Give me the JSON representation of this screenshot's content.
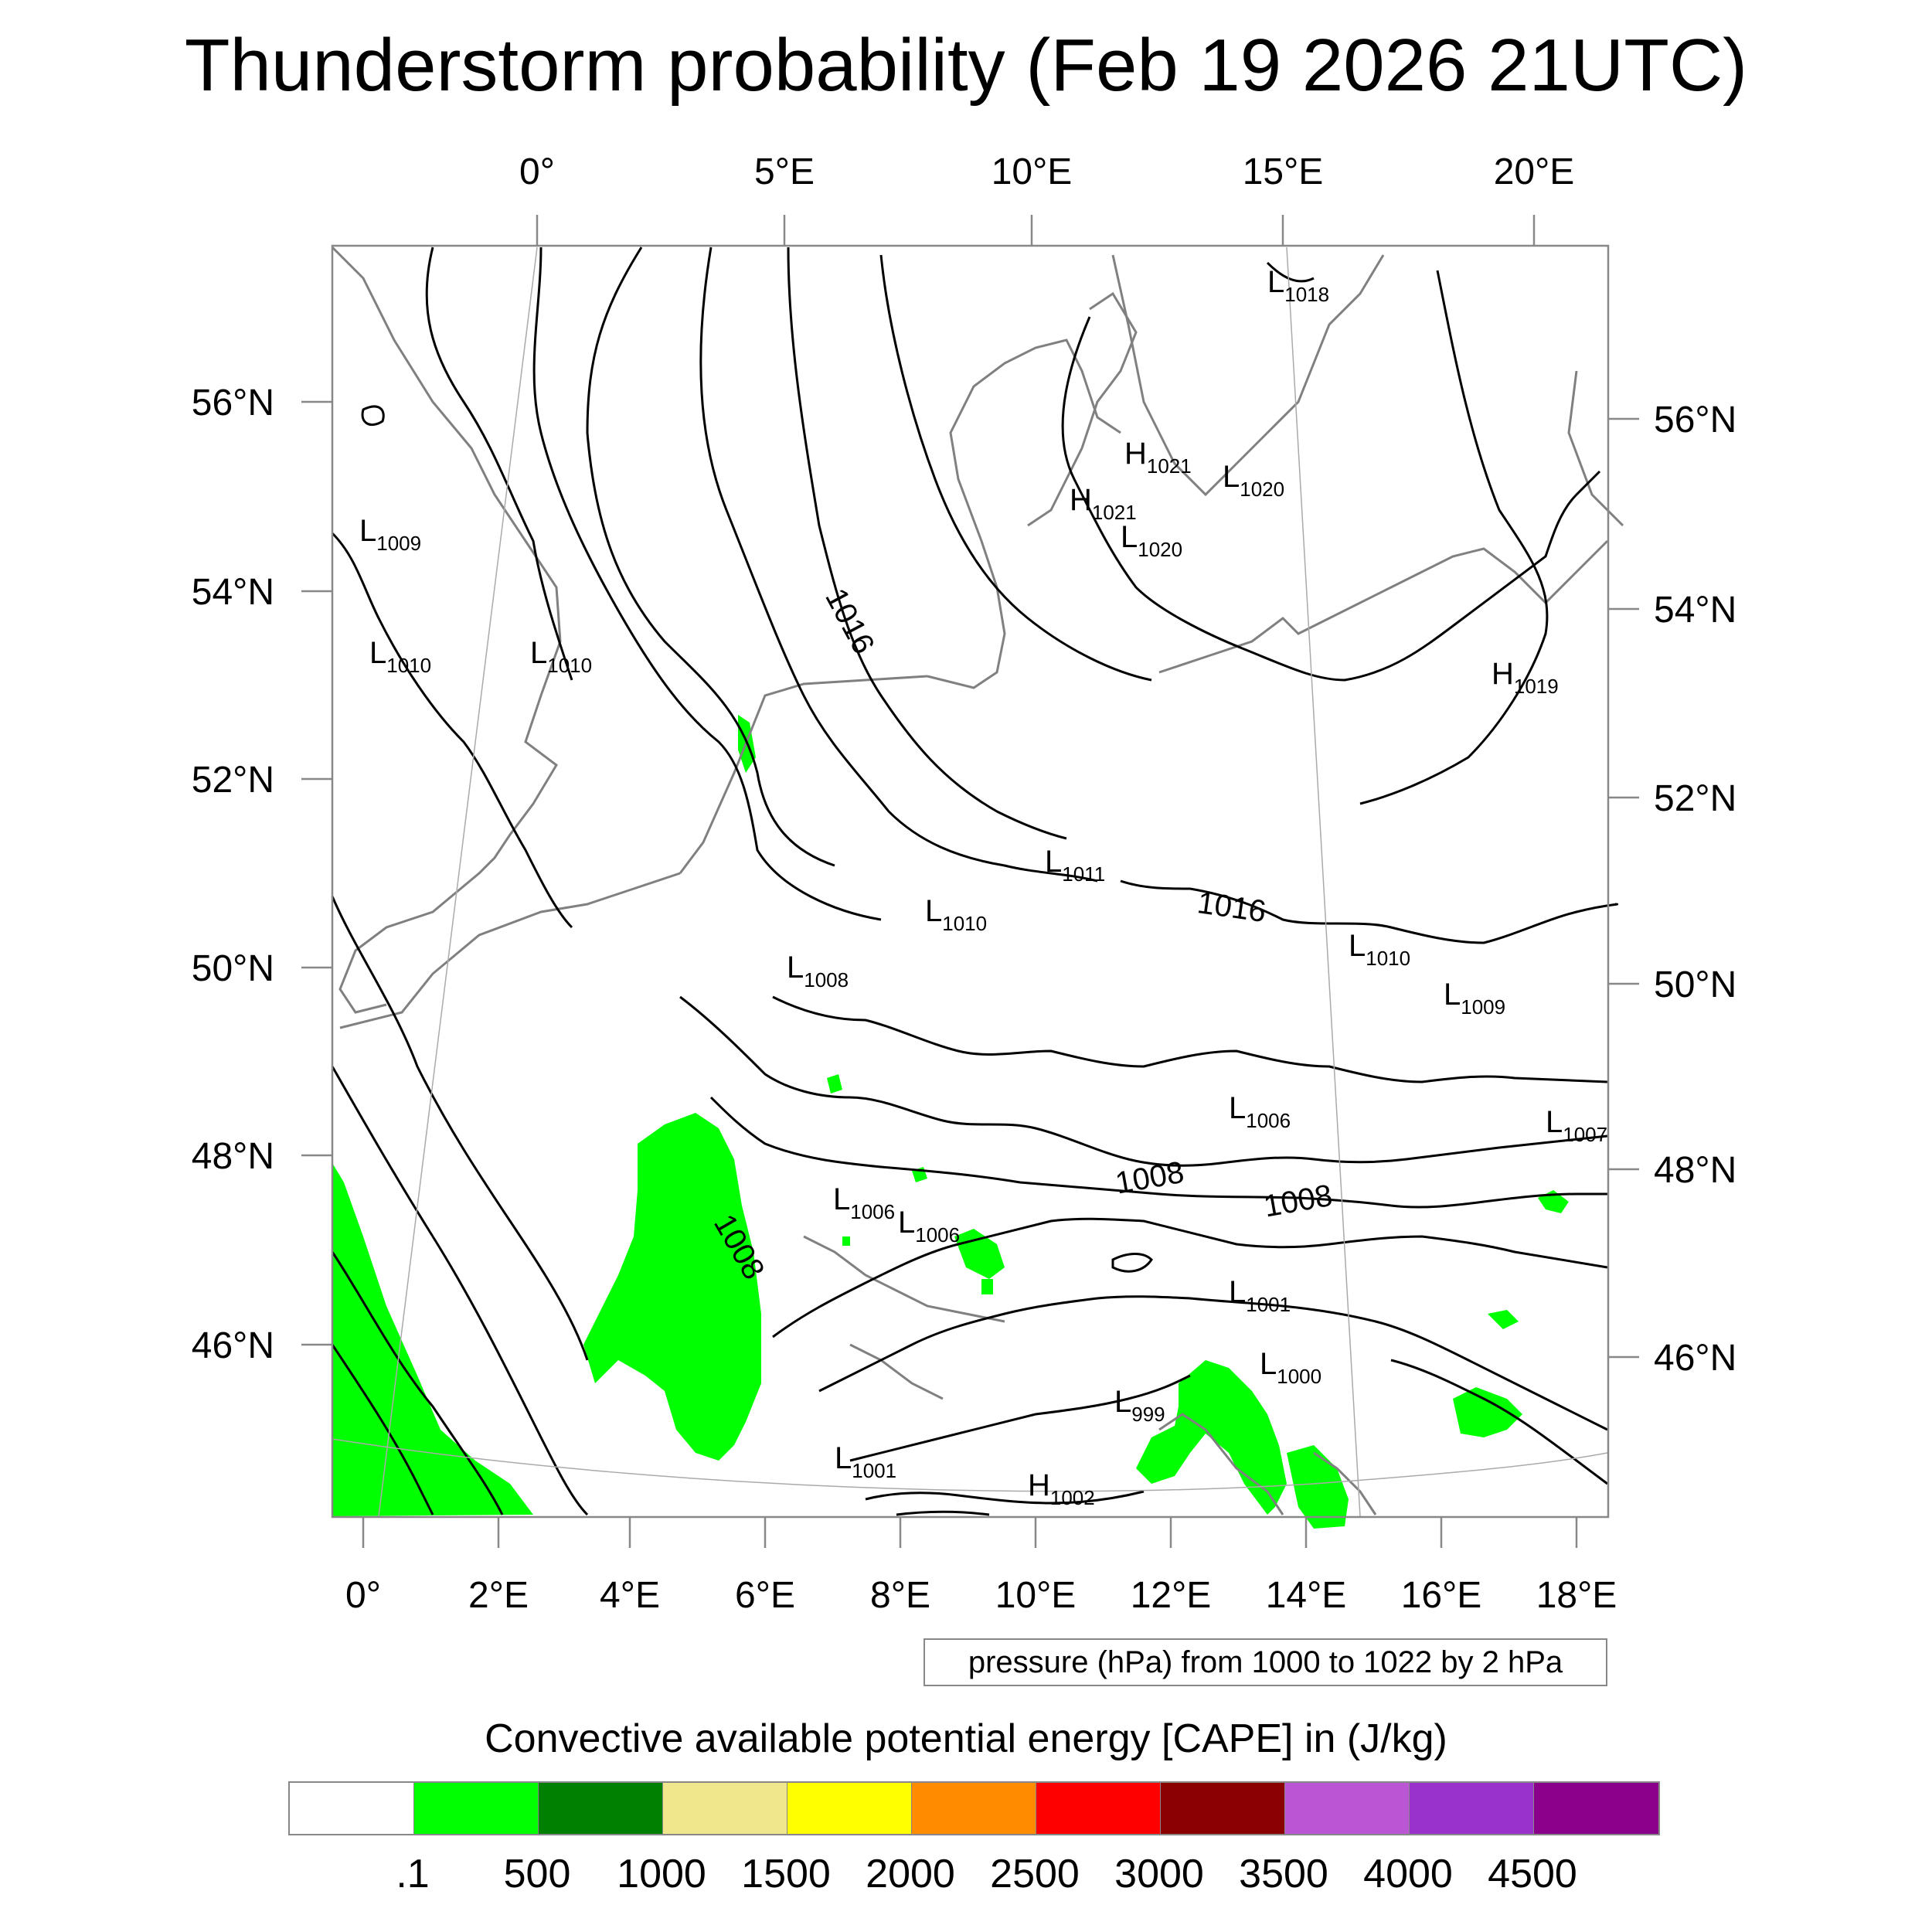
{
  "title": "Thunderstorm probability (Feb 19 2026 21UTC)",
  "top_lon_labels": [
    "0°",
    "5°E",
    "10°E",
    "15°E",
    "20°E"
  ],
  "bottom_lon_labels": [
    "0°",
    "2°E",
    "4°E",
    "6°E",
    "8°E",
    "10°E",
    "12°E",
    "14°E",
    "16°E",
    "18°E"
  ],
  "left_lat_labels": [
    "56°N",
    "54°N",
    "52°N",
    "50°N",
    "48°N",
    "46°N"
  ],
  "right_lat_labels": [
    "56°N",
    "54°N",
    "52°N",
    "50°N",
    "48°N",
    "46°N"
  ],
  "pressure_centers": [
    {
      "type": "L",
      "value": "1018"
    },
    {
      "type": "H",
      "value": "1021"
    },
    {
      "type": "L",
      "value": "1020"
    },
    {
      "type": "H",
      "value": "1021"
    },
    {
      "type": "L",
      "value": "1020"
    },
    {
      "type": "L",
      "value": "1009"
    },
    {
      "type": "L",
      "value": "1010"
    },
    {
      "type": "L",
      "value": "1010"
    },
    {
      "type": "H",
      "value": "1019"
    },
    {
      "type": "L",
      "value": "1011"
    },
    {
      "type": "L",
      "value": "1010"
    },
    {
      "type": "L",
      "value": "1008"
    },
    {
      "type": "L",
      "value": "1010"
    },
    {
      "type": "L",
      "value": "1009"
    },
    {
      "type": "L",
      "value": "1006"
    },
    {
      "type": "L",
      "value": "1007"
    },
    {
      "type": "L",
      "value": "1006"
    },
    {
      "type": "L",
      "value": "1006"
    },
    {
      "type": "L",
      "value": "1001"
    },
    {
      "type": "L",
      "value": "1000"
    },
    {
      "type": "L",
      "value": "999"
    },
    {
      "type": "L",
      "value": "1001"
    },
    {
      "type": "H",
      "value": "1002"
    }
  ],
  "isobar_labels": [
    "1016",
    "1016",
    "1008",
    "1008",
    "1008"
  ],
  "contour_info": "pressure (hPa) from 1000 to 1022 by 2 hPa",
  "colorbar": {
    "title": "Convective available potential energy [CAPE] in (J/kg)",
    "colors": [
      "#ffffff",
      "#00ff00",
      "#008000",
      "#f0e68c",
      "#ffff00",
      "#ff8c00",
      "#ff0000",
      "#8b0000",
      "#ba55d3",
      "#9932cc",
      "#8b008b"
    ],
    "labels": [
      ".1",
      "500",
      "1000",
      "1500",
      "2000",
      "2500",
      "3000",
      "3500",
      "4000",
      "4500"
    ]
  },
  "colors": {
    "cape_fill": "#00ff00",
    "coastline": "#808080",
    "isobar": "#000000"
  }
}
